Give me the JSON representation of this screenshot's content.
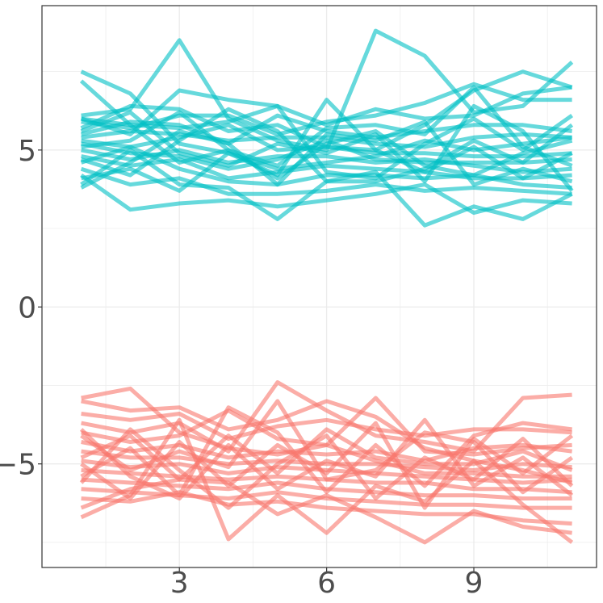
{
  "chart_data": {
    "type": "line",
    "title": "",
    "xlabel": "",
    "ylabel": "",
    "xlim": [
      0.2,
      11.5
    ],
    "ylim": [
      -8.3,
      9.6
    ],
    "x_ticks": [
      3,
      6,
      9
    ],
    "x_tick_labels": [
      "3",
      "6",
      "9"
    ],
    "y_ticks": [
      -5,
      0,
      5
    ],
    "y_tick_labels": [
      "−5",
      "0",
      "5"
    ],
    "grid": true,
    "legend": "none",
    "x": [
      1,
      2,
      3,
      4,
      5,
      6,
      7,
      8,
      9,
      10,
      11
    ],
    "colors": {
      "group_a": "#00BFC4",
      "group_b": "#F8766D",
      "panel_border": "#333333",
      "grid": "#ebebeb"
    },
    "series": [
      {
        "group": "group_a",
        "values": [
          7.5,
          6.8,
          5.2,
          4.9,
          4.4,
          4.6,
          4.8,
          5.3,
          5.0,
          5.2,
          5.4
        ]
      },
      {
        "group": "group_a",
        "values": [
          7.2,
          5.8,
          4.6,
          5.0,
          4.1,
          5.2,
          5.6,
          4.5,
          4.2,
          4.9,
          5.3
        ]
      },
      {
        "group": "group_a",
        "values": [
          6.1,
          6.3,
          8.5,
          6.0,
          5.3,
          5.0,
          8.8,
          8.0,
          6.2,
          6.4,
          7.8
        ]
      },
      {
        "group": "group_a",
        "values": [
          6.0,
          5.5,
          6.9,
          6.6,
          6.4,
          5.8,
          6.3,
          6.0,
          6.1,
          6.8,
          7.0
        ]
      },
      {
        "group": "group_a",
        "values": [
          5.9,
          5.7,
          6.1,
          6.1,
          5.5,
          5.9,
          6.1,
          6.5,
          7.1,
          6.6,
          6.6
        ]
      },
      {
        "group": "group_a",
        "values": [
          5.7,
          6.4,
          6.3,
          5.6,
          5.8,
          5.1,
          5.0,
          5.8,
          6.9,
          7.5,
          7.0
        ]
      },
      {
        "group": "group_a",
        "values": [
          5.5,
          5.9,
          5.8,
          5.2,
          6.1,
          5.6,
          5.4,
          5.6,
          5.8,
          5.8,
          5.6
        ]
      },
      {
        "group": "group_a",
        "values": [
          5.4,
          5.6,
          5.5,
          5.3,
          5.4,
          5.4,
          5.2,
          5.1,
          5.4,
          5.5,
          5.4
        ]
      },
      {
        "group": "group_a",
        "values": [
          5.3,
          5.1,
          5.4,
          5.8,
          5.0,
          5.1,
          4.9,
          4.9,
          4.8,
          4.8,
          4.9
        ]
      },
      {
        "group": "group_a",
        "values": [
          5.2,
          4.9,
          4.8,
          4.4,
          4.7,
          5.3,
          4.7,
          4.6,
          4.6,
          4.6,
          4.7
        ]
      },
      {
        "group": "group_a",
        "values": [
          5.0,
          4.7,
          5.0,
          4.6,
          4.8,
          4.8,
          4.6,
          4.7,
          4.5,
          4.3,
          4.4
        ]
      },
      {
        "group": "group_a",
        "values": [
          4.8,
          4.5,
          4.7,
          4.1,
          4.3,
          4.5,
          4.4,
          4.3,
          4.1,
          4.1,
          4.2
        ]
      },
      {
        "group": "group_a",
        "values": [
          4.6,
          5.1,
          4.4,
          4.0,
          3.9,
          4.2,
          4.2,
          4.1,
          4.2,
          3.9,
          3.8
        ]
      },
      {
        "group": "group_a",
        "values": [
          4.4,
          3.9,
          4.1,
          3.6,
          3.6,
          3.7,
          3.9,
          3.7,
          3.8,
          3.7,
          3.6
        ]
      },
      {
        "group": "group_a",
        "values": [
          4.2,
          3.1,
          3.3,
          3.4,
          3.2,
          3.4,
          3.6,
          3.9,
          3.0,
          3.4,
          3.3
        ]
      },
      {
        "group": "group_a",
        "values": [
          3.9,
          5.0,
          3.9,
          3.8,
          2.8,
          4.0,
          4.3,
          2.6,
          3.2,
          2.8,
          3.6
        ]
      },
      {
        "group": "group_a",
        "values": [
          4.1,
          4.4,
          3.7,
          4.9,
          4.2,
          6.6,
          5.0,
          4.3,
          5.1,
          4.1,
          4.9
        ]
      },
      {
        "group": "group_a",
        "values": [
          5.6,
          6.2,
          4.9,
          4.5,
          5.2,
          4.9,
          5.5,
          4.0,
          6.4,
          5.6,
          3.7
        ]
      },
      {
        "group": "group_a",
        "values": [
          6.0,
          5.8,
          5.7,
          5.9,
          6.4,
          4.3,
          4.1,
          5.2,
          6.0,
          5.0,
          6.1
        ]
      },
      {
        "group": "group_a",
        "values": [
          5.1,
          5.3,
          6.2,
          5.0,
          4.5,
          5.7,
          5.8,
          5.5,
          7.0,
          5.1,
          4.5
        ]
      },
      {
        "group": "group_a",
        "values": [
          4.7,
          4.2,
          5.3,
          6.3,
          5.6,
          4.0,
          4.0,
          4.4,
          5.3,
          4.6,
          5.8
        ]
      },
      {
        "group": "group_a",
        "values": [
          3.8,
          4.6,
          5.6,
          5.2,
          3.9,
          5.5,
          5.3,
          5.9,
          3.9,
          4.4,
          4.0
        ]
      },
      {
        "group": "group_b",
        "values": [
          -2.9,
          -2.6,
          -4.0,
          -4.5,
          -4.7,
          -4.4,
          -4.9,
          -5.3,
          -5.3,
          -5.4,
          -5.4
        ]
      },
      {
        "group": "group_b",
        "values": [
          -3.0,
          -3.3,
          -3.2,
          -3.9,
          -3.6,
          -3.0,
          -3.5,
          -4.5,
          -4.9,
          -5.2,
          -5.6
        ]
      },
      {
        "group": "group_b",
        "values": [
          -3.4,
          -3.6,
          -3.4,
          -4.2,
          -3.8,
          -3.6,
          -3.9,
          -4.1,
          -3.9,
          -3.9,
          -4.0
        ]
      },
      {
        "group": "group_b",
        "values": [
          -3.7,
          -4.0,
          -3.7,
          -4.6,
          -2.4,
          -3.3,
          -4.1,
          -4.3,
          -4.6,
          -2.9,
          -2.8
        ]
      },
      {
        "group": "group_b",
        "values": [
          -4.0,
          -4.3,
          -4.1,
          -3.3,
          -4.2,
          -4.4,
          -2.9,
          -4.6,
          -4.7,
          -4.5,
          -4.4
        ]
      },
      {
        "group": "group_b",
        "values": [
          -4.3,
          -4.6,
          -4.4,
          -4.8,
          -4.6,
          -4.7,
          -4.6,
          -4.9,
          -4.5,
          -4.4,
          -4.6
        ]
      },
      {
        "group": "group_b",
        "values": [
          -4.6,
          -4.8,
          -4.8,
          -5.0,
          -4.9,
          -5.0,
          -5.0,
          -5.1,
          -5.2,
          -5.0,
          -5.1
        ]
      },
      {
        "group": "group_b",
        "values": [
          -4.9,
          -5.1,
          -5.0,
          -5.3,
          -5.1,
          -5.2,
          -5.3,
          -5.4,
          -5.5,
          -5.6,
          -5.5
        ]
      },
      {
        "group": "group_b",
        "values": [
          -5.2,
          -5.3,
          -5.4,
          -5.5,
          -5.4,
          -5.5,
          -5.6,
          -5.6,
          -5.8,
          -5.8,
          -5.9
        ]
      },
      {
        "group": "group_b",
        "values": [
          -5.5,
          -5.6,
          -5.7,
          -5.8,
          -5.6,
          -5.8,
          -5.9,
          -6.0,
          -6.0,
          -6.1,
          -6.1
        ]
      },
      {
        "group": "group_b",
        "values": [
          -5.8,
          -5.9,
          -6.0,
          -6.1,
          -5.9,
          -6.1,
          -6.2,
          -6.3,
          -6.3,
          -6.4,
          -6.4
        ]
      },
      {
        "group": "group_b",
        "values": [
          -6.1,
          -6.2,
          -5.9,
          -6.3,
          -6.2,
          -6.4,
          -6.5,
          -6.6,
          -6.6,
          -6.8,
          -6.9
        ]
      },
      {
        "group": "group_b",
        "values": [
          -6.4,
          -5.8,
          -5.5,
          -5.6,
          -6.6,
          -6.0,
          -6.7,
          -7.5,
          -6.5,
          -7.0,
          -7.2
        ]
      },
      {
        "group": "group_b",
        "values": [
          -6.7,
          -6.0,
          -3.6,
          -7.4,
          -6.0,
          -7.2,
          -5.7,
          -6.2,
          -4.9,
          -6.3,
          -7.5
        ]
      },
      {
        "group": "group_b",
        "values": [
          -5.4,
          -4.5,
          -6.0,
          -3.2,
          -4.0,
          -5.9,
          -4.4,
          -5.7,
          -4.1,
          -3.7,
          -3.9
        ]
      },
      {
        "group": "group_b",
        "values": [
          -5.6,
          -3.9,
          -5.2,
          -6.4,
          -5.0,
          -4.1,
          -6.1,
          -4.8,
          -5.5,
          -4.2,
          -5.7
        ]
      },
      {
        "group": "group_b",
        "values": [
          -4.1,
          -5.2,
          -4.6,
          -5.1,
          -3.0,
          -5.5,
          -5.2,
          -4.0,
          -4.3,
          -5.9,
          -4.8
        ]
      },
      {
        "group": "group_b",
        "values": [
          -4.8,
          -4.1,
          -5.5,
          -4.1,
          -5.3,
          -3.9,
          -4.8,
          -5.0,
          -5.0,
          -4.6,
          -5.2
        ]
      },
      {
        "group": "group_b",
        "values": [
          -5.0,
          -6.1,
          -4.3,
          -5.7,
          -4.4,
          -5.3,
          -3.7,
          -6.4,
          -4.2,
          -5.3,
          -4.1
        ]
      },
      {
        "group": "group_b",
        "values": [
          -3.9,
          -5.4,
          -6.1,
          -4.4,
          -5.8,
          -4.9,
          -5.4,
          -3.6,
          -5.7,
          -4.8,
          -6.0
        ]
      }
    ]
  }
}
